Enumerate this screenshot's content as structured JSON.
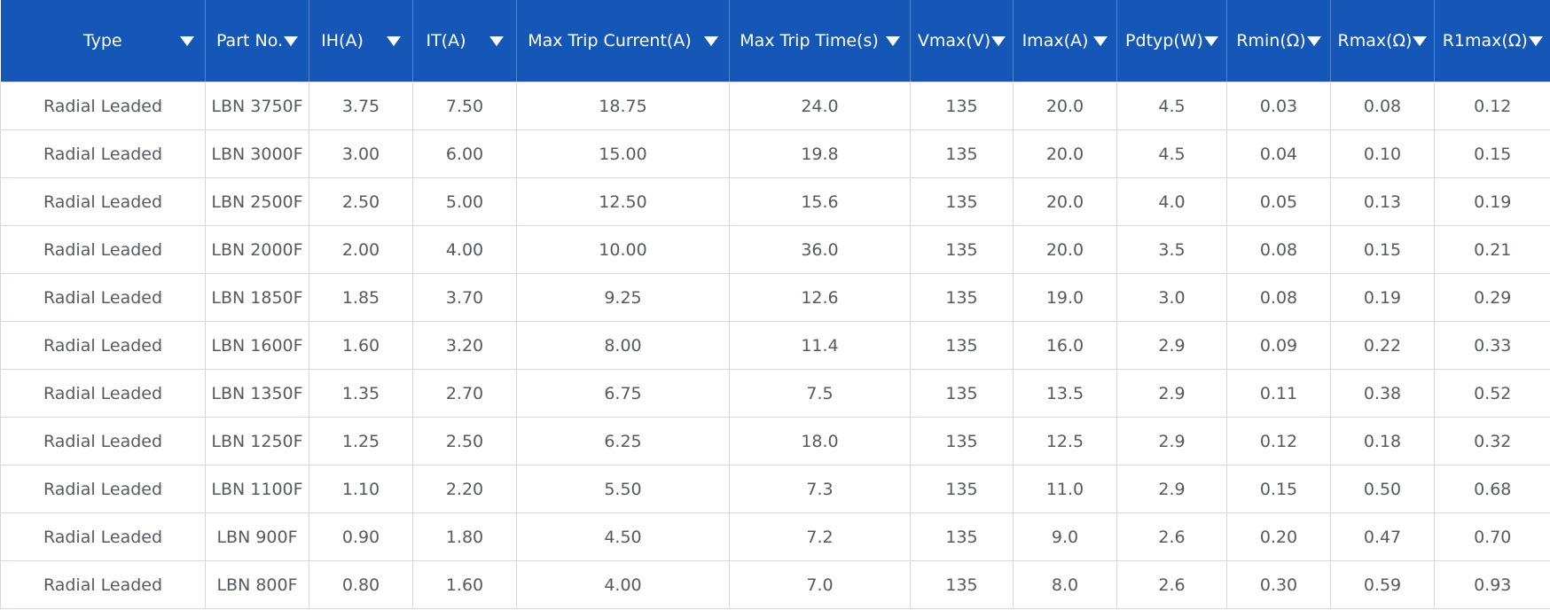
{
  "table": {
    "columns": [
      "Type",
      "Part No.",
      "IH(A)",
      "IT(A)",
      "Max Trip Current(A)",
      "Max Trip Time(s)",
      "Vmax(V)",
      "Imax(A)",
      "Pdtyp(W)",
      "Rmin(Ω)",
      "Rmax(Ω)",
      "R1max(Ω)"
    ],
    "sort_icon": "caret-down-icon",
    "header_color": "#1557b6",
    "rows": [
      [
        "Radial Leaded",
        "LBN 3750F",
        "3.75",
        "7.50",
        "18.75",
        "24.0",
        "135",
        "20.0",
        "4.5",
        "0.03",
        "0.08",
        "0.12"
      ],
      [
        "Radial Leaded",
        "LBN 3000F",
        "3.00",
        "6.00",
        "15.00",
        "19.8",
        "135",
        "20.0",
        "4.5",
        "0.04",
        "0.10",
        "0.15"
      ],
      [
        "Radial Leaded",
        "LBN 2500F",
        "2.50",
        "5.00",
        "12.50",
        "15.6",
        "135",
        "20.0",
        "4.0",
        "0.05",
        "0.13",
        "0.19"
      ],
      [
        "Radial Leaded",
        "LBN 2000F",
        "2.00",
        "4.00",
        "10.00",
        "36.0",
        "135",
        "20.0",
        "3.5",
        "0.08",
        "0.15",
        "0.21"
      ],
      [
        "Radial Leaded",
        "LBN 1850F",
        "1.85",
        "3.70",
        "9.25",
        "12.6",
        "135",
        "19.0",
        "3.0",
        "0.08",
        "0.19",
        "0.29"
      ],
      [
        "Radial Leaded",
        "LBN 1600F",
        "1.60",
        "3.20",
        "8.00",
        "11.4",
        "135",
        "16.0",
        "2.9",
        "0.09",
        "0.22",
        "0.33"
      ],
      [
        "Radial Leaded",
        "LBN 1350F",
        "1.35",
        "2.70",
        "6.75",
        "7.5",
        "135",
        "13.5",
        "2.9",
        "0.11",
        "0.38",
        "0.52"
      ],
      [
        "Radial Leaded",
        "LBN 1250F",
        "1.25",
        "2.50",
        "6.25",
        "18.0",
        "135",
        "12.5",
        "2.9",
        "0.12",
        "0.18",
        "0.32"
      ],
      [
        "Radial Leaded",
        "LBN 1100F",
        "1.10",
        "2.20",
        "5.50",
        "7.3",
        "135",
        "11.0",
        "2.9",
        "0.15",
        "0.50",
        "0.68"
      ],
      [
        "Radial Leaded",
        "LBN 900F",
        "0.90",
        "1.80",
        "4.50",
        "7.2",
        "135",
        "9.0",
        "2.6",
        "0.20",
        "0.47",
        "0.70"
      ],
      [
        "Radial Leaded",
        "LBN 800F",
        "0.80",
        "1.60",
        "4.00",
        "7.0",
        "135",
        "8.0",
        "2.6",
        "0.30",
        "0.59",
        "0.93"
      ]
    ]
  }
}
